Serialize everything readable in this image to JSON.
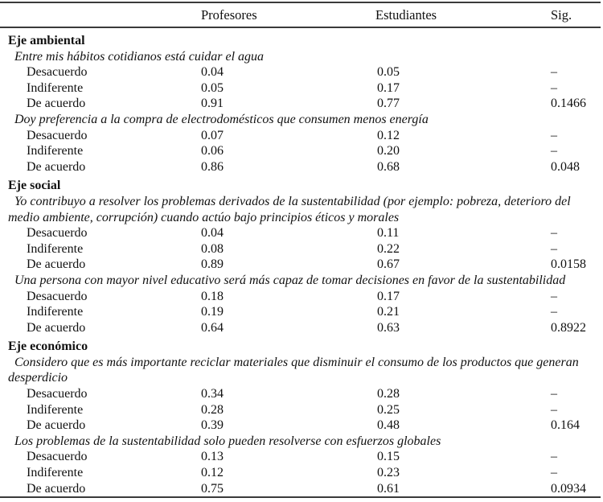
{
  "table": {
    "columns": [
      "",
      "Profesores",
      "Estudiantes",
      "Sig."
    ],
    "sections": [
      {
        "title": "Eje ambiental",
        "items": [
          {
            "statement": "Entre mis hábitos cotidianos está cuidar el agua",
            "rows": [
              {
                "label": "Desacuerdo",
                "profesores": "0.04",
                "estudiantes": "0.05",
                "sig": "–"
              },
              {
                "label": "Indiferente",
                "profesores": "0.05",
                "estudiantes": "0.17",
                "sig": "–"
              },
              {
                "label": "De acuerdo",
                "profesores": "0.91",
                "estudiantes": "0.77",
                "sig": "0.1466"
              }
            ]
          },
          {
            "statement": "Doy preferencia a la compra de electrodomésticos que consumen menos energía",
            "rows": [
              {
                "label": "Desacuerdo",
                "profesores": "0.07",
                "estudiantes": "0.12",
                "sig": "–"
              },
              {
                "label": "Indiferente",
                "profesores": "0.06",
                "estudiantes": "0.20",
                "sig": "–"
              },
              {
                "label": "De acuerdo",
                "profesores": "0.86",
                "estudiantes": "0.68",
                "sig": "0.048"
              }
            ]
          }
        ]
      },
      {
        "title": "Eje social",
        "items": [
          {
            "statement": "Yo contribuyo a resolver los problemas derivados de la sustentabilidad (por ejemplo: pobreza, deterioro del medio ambiente, corrupción) cuando actúo bajo principios éticos y morales",
            "rows": [
              {
                "label": "Desacuerdo",
                "profesores": "0.04",
                "estudiantes": "0.11",
                "sig": "–"
              },
              {
                "label": "Indiferente",
                "profesores": "0.08",
                "estudiantes": "0.22",
                "sig": "–"
              },
              {
                "label": "De acuerdo",
                "profesores": "0.89",
                "estudiantes": "0.67",
                "sig": "0.0158"
              }
            ]
          },
          {
            "statement": "Una persona con mayor nivel educativo será más capaz de tomar decisiones en favor de la sustentabilidad",
            "rows": [
              {
                "label": "Desacuerdo",
                "profesores": "0.18",
                "estudiantes": "0.17",
                "sig": "–"
              },
              {
                "label": "Indiferente",
                "profesores": "0.19",
                "estudiantes": "0.21",
                "sig": "–"
              },
              {
                "label": "De acuerdo",
                "profesores": "0.64",
                "estudiantes": "0.63",
                "sig": "0.8922"
              }
            ]
          }
        ]
      },
      {
        "title": "Eje económico",
        "items": [
          {
            "statement": "Considero que es más importante reciclar materiales que disminuir el consumo de los productos que generan desperdicio",
            "rows": [
              {
                "label": "Desacuerdo",
                "profesores": "0.34",
                "estudiantes": "0.28",
                "sig": "–"
              },
              {
                "label": "Indiferente",
                "profesores": "0.28",
                "estudiantes": "0.25",
                "sig": "–"
              },
              {
                "label": "De acuerdo",
                "profesores": "0.39",
                "estudiantes": "0.48",
                "sig": "0.164"
              }
            ]
          },
          {
            "statement": "Los problemas de la sustentabilidad solo pueden resolverse con esfuerzos globales",
            "rows": [
              {
                "label": "Desacuerdo",
                "profesores": "0.13",
                "estudiantes": "0.15",
                "sig": "–"
              },
              {
                "label": "Indiferente",
                "profesores": "0.12",
                "estudiantes": "0.23",
                "sig": "–"
              },
              {
                "label": "De acuerdo",
                "profesores": "0.75",
                "estudiantes": "0.61",
                "sig": "0.0934"
              }
            ]
          }
        ]
      }
    ]
  }
}
